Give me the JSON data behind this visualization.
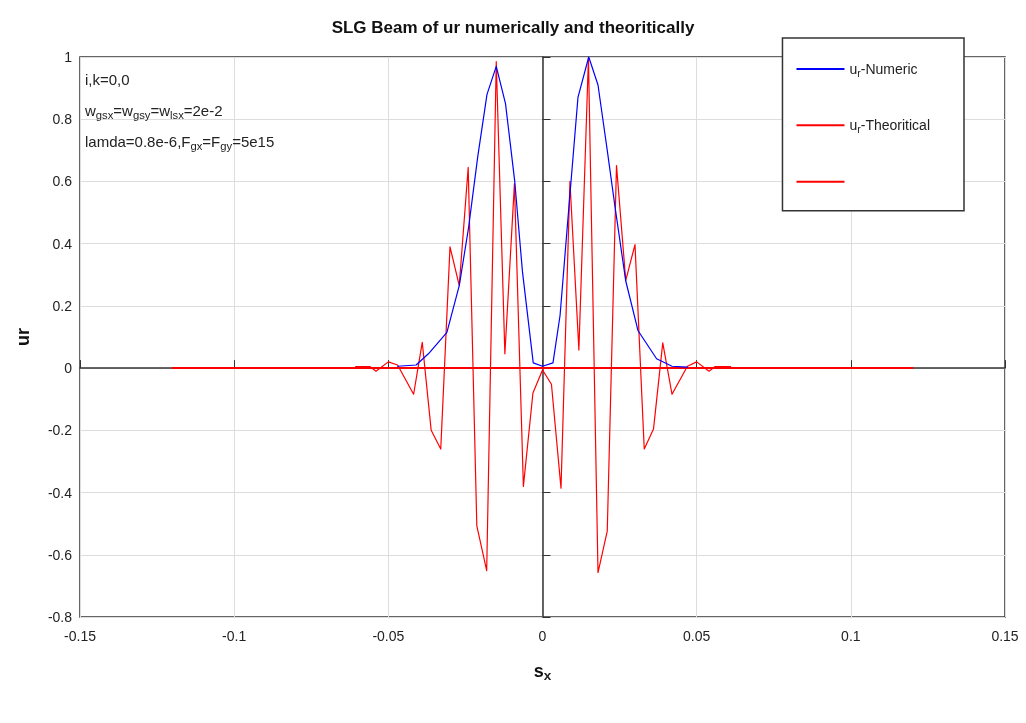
{
  "chart_data": {
    "type": "line",
    "title": "SLG Beam of ur numerically and theoritically",
    "xlabel": "s$_{x}$",
    "ylabel": "ur",
    "annotations": [
      "i,k=0,0",
      "w$_{gsx}$=w$_{gsy}$=w$_{lsx}$=2e-2",
      "lamda=0.8e-6,F$_{gx}$=F$_{gy}$=5e15"
    ],
    "xlim": [
      -0.15,
      0.15
    ],
    "xticks": [
      -0.15,
      -0.1,
      -0.05,
      0,
      0.05,
      0.1,
      0.15
    ],
    "ylim": [
      -0.8,
      1
    ],
    "yticks": [
      -0.8,
      -0.6,
      -0.4,
      -0.2,
      0,
      0.2,
      0.4,
      0.6,
      0.8,
      1
    ],
    "grid": true,
    "legend": "top right",
    "marker": "none",
    "line_style": "solid",
    "series": [
      {
        "name": "u$_{r}$-Numeric",
        "color": "#0000ff",
        "x": [
          -0.047,
          -0.041,
          -0.037,
          -0.031,
          -0.027,
          -0.024,
          -0.021,
          -0.018,
          -0.015,
          -0.012,
          -0.009,
          -0.0065,
          -0.003,
          0,
          0.0034,
          0.0057,
          0.008,
          0.0115,
          0.015,
          0.018,
          0.021,
          0.0235,
          0.027,
          0.031,
          0.037,
          0.042,
          0.047
        ],
        "values": [
          0.006,
          0.01,
          0.046,
          0.115,
          0.265,
          0.45,
          0.68,
          0.88,
          0.97,
          0.85,
          0.6,
          0.31,
          0.017,
          0.006,
          0.017,
          0.17,
          0.45,
          0.87,
          1.0,
          0.91,
          0.7,
          0.52,
          0.28,
          0.12,
          0.03,
          0.006,
          0.003
        ]
      },
      {
        "name": "u$_{r}$-Theoritical",
        "color": "#ff0000",
        "x": [
          -0.0606,
          -0.056,
          -0.054,
          -0.05,
          -0.047,
          -0.0418,
          -0.039,
          -0.0361,
          -0.033,
          -0.03,
          -0.027,
          -0.0241,
          -0.0213,
          -0.0181,
          -0.015,
          -0.0122,
          -0.0091,
          -0.0062,
          -0.0031,
          0,
          0.0029,
          0.006,
          0.0089,
          0.0118,
          0.0149,
          0.018,
          0.021,
          0.024,
          0.027,
          0.03,
          0.033,
          0.036,
          0.039,
          0.042,
          0.047,
          0.05,
          0.054,
          0.056,
          0.061
        ],
        "values": [
          0.005,
          0.005,
          -0.01,
          0.02,
          0.01,
          -0.084,
          0.083,
          -0.2,
          -0.26,
          0.39,
          0.265,
          0.645,
          -0.507,
          -0.651,
          0.985,
          0.046,
          0.593,
          -0.38,
          -0.08,
          -0.006,
          -0.052,
          -0.386,
          0.6,
          0.058,
          0.997,
          -0.657,
          -0.524,
          0.651,
          0.282,
          0.397,
          -0.26,
          -0.196,
          0.081,
          -0.084,
          0.006,
          0.02,
          -0.01,
          0.005,
          0.005
        ]
      },
      {
        "color": "#ff0000",
        "x": [
          -0.12,
          0.12
        ],
        "values": [
          0,
          0
        ]
      }
    ]
  }
}
